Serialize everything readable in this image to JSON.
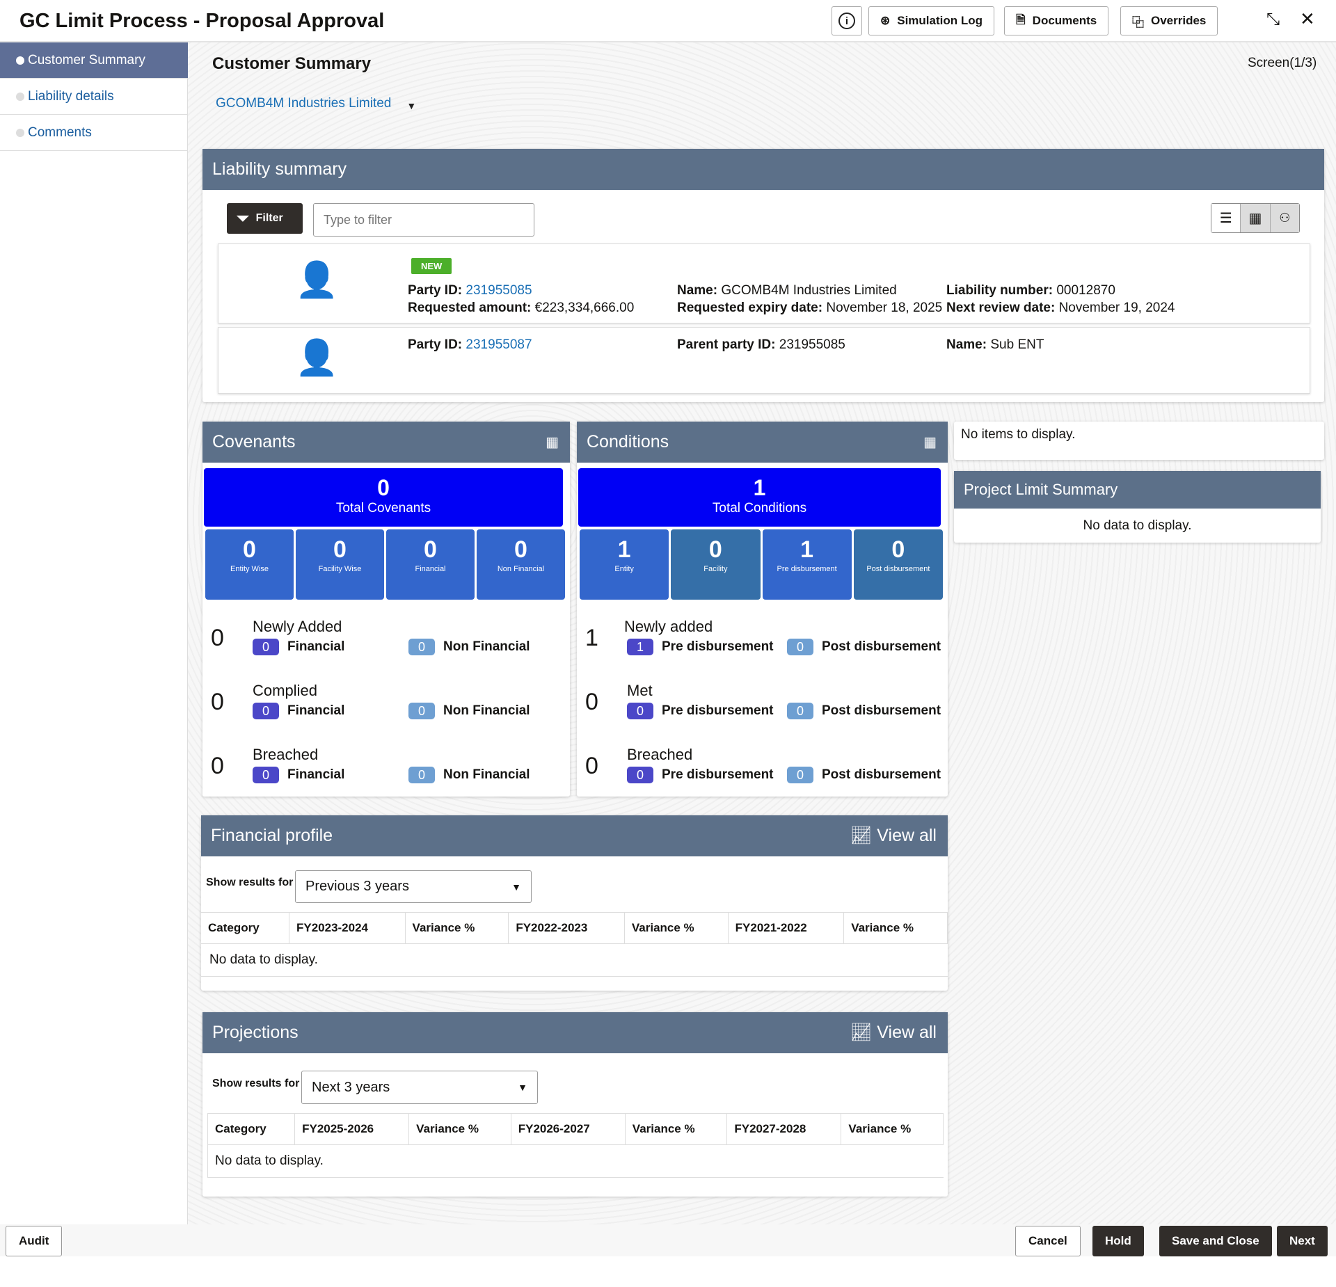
{
  "header": {
    "title": "GC Limit Process - Proposal Approval",
    "info_label": "i",
    "simulation_log": "Simulation Log",
    "documents": "Documents",
    "overrides": "Overrides"
  },
  "sidebar": {
    "items": [
      {
        "label": "Customer Summary"
      },
      {
        "label": "Liability details"
      },
      {
        "label": "Comments"
      }
    ]
  },
  "page": {
    "title": "Customer Summary",
    "screen": "Screen(1/3)",
    "customer": "GCOMB4M Industries Limited"
  },
  "liability": {
    "title": "Liability summary",
    "filter_label": "Filter",
    "filter_placeholder": "Type to filter",
    "cards": [
      {
        "badge": "NEW",
        "party_id_label": "Party ID:",
        "party_id": "231955085",
        "req_amount_label": "Requested amount:",
        "req_amount": "€223,334,666.00",
        "name_label": "Name:",
        "name": "GCOMB4M Industries Limited",
        "expiry_label": "Requested expiry date:",
        "expiry": "November 18, 2025",
        "liab_label": "Liability number:",
        "liab": "00012870",
        "review_label": "Next review date:",
        "review": "November 19, 2024"
      },
      {
        "party_id_label": "Party ID:",
        "party_id": "231955087",
        "parent_label": "Parent party ID:",
        "parent": "231955085",
        "name_label": "Name:",
        "name": "Sub ENT"
      }
    ]
  },
  "covenants": {
    "title": "Covenants",
    "total": "0",
    "total_label": "Total Covenants",
    "tiles": [
      {
        "n": "0",
        "t": "Entity Wise"
      },
      {
        "n": "0",
        "t": "Facility Wise"
      },
      {
        "n": "0",
        "t": "Financial"
      },
      {
        "n": "0",
        "t": "Non Financial"
      }
    ],
    "stats": [
      {
        "num": "0",
        "label": "Newly Added",
        "a": "0",
        "a_label": "Financial",
        "b": "0",
        "b_label": "Non Financial"
      },
      {
        "num": "0",
        "label": "Complied",
        "a": "0",
        "a_label": "Financial",
        "b": "0",
        "b_label": "Non Financial"
      },
      {
        "num": "0",
        "label": "Breached",
        "a": "0",
        "a_label": "Financial",
        "b": "0",
        "b_label": "Non Financial"
      }
    ]
  },
  "conditions": {
    "title": "Conditions",
    "total": "1",
    "total_label": "Total Conditions",
    "tiles": [
      {
        "n": "1",
        "t": "Entity"
      },
      {
        "n": "0",
        "t": "Facility"
      },
      {
        "n": "1",
        "t": "Pre disbursement"
      },
      {
        "n": "0",
        "t": "Post disbursement"
      }
    ],
    "stats": [
      {
        "num": "1",
        "label": "Newly added",
        "a": "1",
        "a_label": "Pre disbursement",
        "b": "0",
        "b_label": "Post disbursement"
      },
      {
        "num": "0",
        "label": "Met",
        "a": "0",
        "a_label": "Pre disbursement",
        "b": "0",
        "b_label": "Post disbursement"
      },
      {
        "num": "0",
        "label": "Breached",
        "a": "0",
        "a_label": "Pre disbursement",
        "b": "0",
        "b_label": "Post disbursement"
      }
    ]
  },
  "side": {
    "no_items": "No items to display.",
    "project_title": "Project Limit Summary",
    "project_empty": "No data to display."
  },
  "financial": {
    "title": "Financial profile",
    "view_all": "View all",
    "show_label": "Show results for",
    "period": "Previous 3 years",
    "columns": [
      "Category",
      "FY2023-2024",
      "Variance %",
      "FY2022-2023",
      "Variance %",
      "FY2021-2022",
      "Variance %"
    ],
    "empty": "No data to display."
  },
  "projections": {
    "title": "Projections",
    "view_all": "View all",
    "show_label": "Show results for",
    "period": "Next 3 years",
    "columns": [
      "Category",
      "FY2025-2026",
      "Variance %",
      "FY2026-2027",
      "Variance %",
      "FY2027-2028",
      "Variance %"
    ],
    "empty": "No data to display."
  },
  "footer": {
    "audit": "Audit",
    "cancel": "Cancel",
    "hold": "Hold",
    "save_close": "Save and Close",
    "next": "Next"
  }
}
